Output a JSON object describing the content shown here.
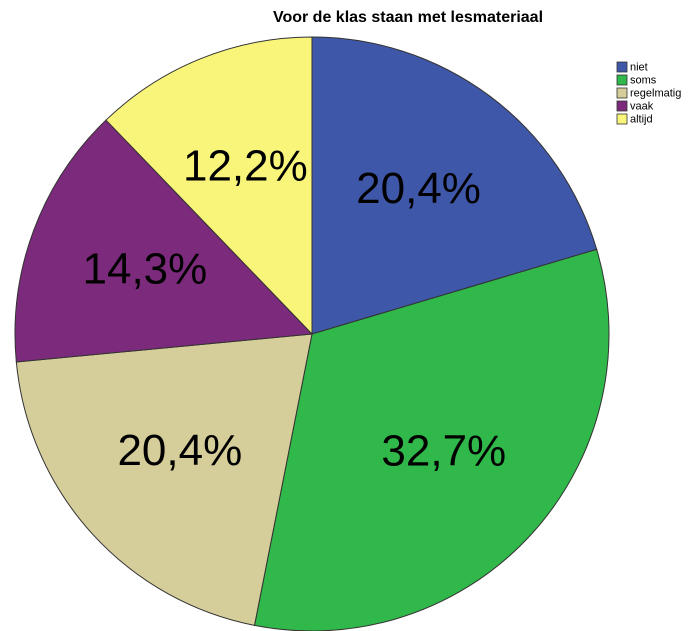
{
  "chart_data": {
    "type": "pie",
    "title": "Voor de klas staan met lesmateriaal",
    "categories": [
      "niet",
      "soms",
      "regelmatig",
      "vaak",
      "altijd"
    ],
    "values": [
      20.4,
      32.7,
      20.4,
      14.3,
      12.2
    ],
    "value_labels": [
      "20,4%",
      "32,7%",
      "20,4%",
      "14,3%",
      "12,2%"
    ],
    "colors": [
      "#3f57a8",
      "#30b84a",
      "#d5cd9a",
      "#7c2a7c",
      "#f9f57b"
    ],
    "legend": "top-right"
  }
}
